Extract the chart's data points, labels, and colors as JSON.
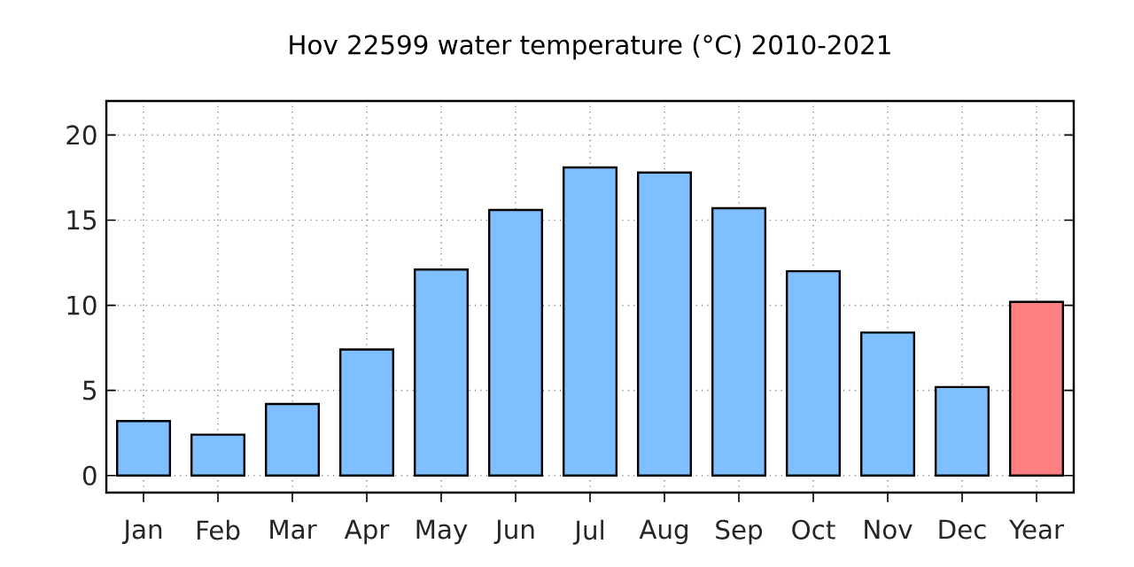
{
  "chart_data": {
    "type": "bar",
    "title": "Hov 22599 water temperature (°C) 2010-2021",
    "categories": [
      "Jan",
      "Feb",
      "Mar",
      "Apr",
      "May",
      "Jun",
      "Jul",
      "Aug",
      "Sep",
      "Oct",
      "Nov",
      "Dec",
      "Year"
    ],
    "values": [
      3.2,
      2.4,
      4.2,
      7.4,
      12.1,
      15.6,
      18.1,
      17.8,
      15.7,
      12.0,
      8.4,
      5.2,
      10.2
    ],
    "colors": [
      "#80bfff",
      "#80bfff",
      "#80bfff",
      "#80bfff",
      "#80bfff",
      "#80bfff",
      "#80bfff",
      "#80bfff",
      "#80bfff",
      "#80bfff",
      "#80bfff",
      "#80bfff",
      "#ff8080"
    ],
    "ylim": [
      -1,
      22
    ],
    "yticks": [
      0,
      5,
      10,
      15,
      20
    ],
    "grid": true
  }
}
